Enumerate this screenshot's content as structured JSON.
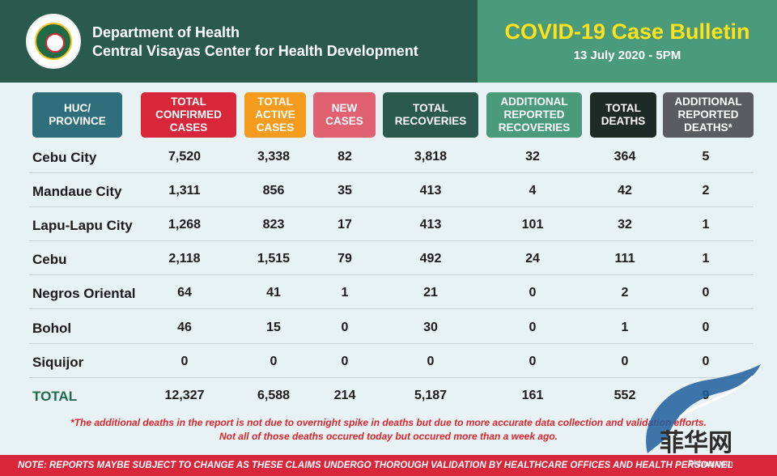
{
  "header": {
    "org_line1": "Department of Health",
    "org_line2": "Central Visayas Center for Health Development",
    "seal_icon": "doh-seal-icon",
    "bulletin_title": "COVID-19 Case Bulletin",
    "bulletin_date": "13 July 2020 - 5PM",
    "colors": {
      "header_bg": "#2a5a4c",
      "bulletin_bg": "#4a9a7c",
      "title": "#ffe21a"
    }
  },
  "columns": [
    {
      "label": "HUC/\nPROVINCE",
      "color": "#2f6f7c"
    },
    {
      "label": "TOTAL\nCONFIRMED\nCASES",
      "color": "#d8263a"
    },
    {
      "label": "TOTAL\nACTIVE\nCASES",
      "color": "#f59b1e"
    },
    {
      "label": "NEW\nCASES",
      "color": "#e06270"
    },
    {
      "label": "TOTAL\nRECOVERIES",
      "color": "#2a5a4c"
    },
    {
      "label": "ADDITIONAL\nREPORTED\nRECOVERIES",
      "color": "#4a9a7c"
    },
    {
      "label": "TOTAL\nDEATHS",
      "color": "#1f2a26"
    },
    {
      "label": "ADDITIONAL\nREPORTED\nDEATHS*",
      "color": "#5a5d5f"
    }
  ],
  "rows": [
    {
      "name": "Cebu City",
      "values": [
        "7,520",
        "3,338",
        "82",
        "3,818",
        "32",
        "364",
        "5"
      ]
    },
    {
      "name": "Mandaue City",
      "values": [
        "1,311",
        "856",
        "35",
        "413",
        "4",
        "42",
        "2"
      ]
    },
    {
      "name": "Lapu-Lapu City",
      "values": [
        "1,268",
        "823",
        "17",
        "413",
        "101",
        "32",
        "1"
      ]
    },
    {
      "name": "Cebu",
      "values": [
        "2,118",
        "1,515",
        "79",
        "492",
        "24",
        "111",
        "1"
      ]
    },
    {
      "name": "Negros Oriental",
      "values": [
        "64",
        "41",
        "1",
        "21",
        "0",
        "2",
        "0"
      ]
    },
    {
      "name": "Bohol",
      "values": [
        "46",
        "15",
        "0",
        "30",
        "0",
        "1",
        "0"
      ]
    },
    {
      "name": "Siquijor",
      "values": [
        "0",
        "0",
        "0",
        "0",
        "0",
        "0",
        "0"
      ]
    }
  ],
  "total": {
    "name": "TOTAL",
    "values": [
      "12,327",
      "6,588",
      "214",
      "5,187",
      "161",
      "552",
      "9"
    ]
  },
  "footnote": {
    "line1": "*The additional deaths in the report is not due to overnight spike in deaths but due to more accurate data collection and validation efforts.",
    "line2": "Not all of those deaths occured today but occured more than a week ago."
  },
  "note": "NOTE:  REPORTS MAYBE SUBJECT TO CHANGE AS THESE CLAIMS UNDERGO THOROUGH VALIDATION BY HEALTHCARE OFFICES AND HEALTH PERSONNEL",
  "watermark": {
    "text": "菲华网",
    "url": "Phhua.com",
    "icon": "dragon-logo-icon"
  }
}
